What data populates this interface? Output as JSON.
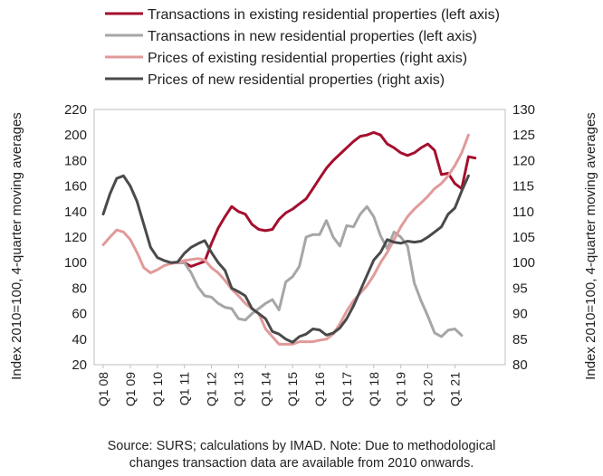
{
  "chart_data": {
    "type": "line",
    "ylabel_left": "Index 2010=100, 4-quarter moving averages",
    "ylabel_right": "Index 2010=100, 4-quarter moving averages",
    "ylim_left": [
      20,
      220
    ],
    "yticks_left": [
      20,
      40,
      60,
      80,
      100,
      120,
      140,
      160,
      180,
      200,
      220
    ],
    "ylim_right": [
      80,
      130
    ],
    "yticks_right": [
      80,
      85,
      90,
      95,
      100,
      105,
      110,
      115,
      120,
      125,
      130
    ],
    "xlim": [
      "Q1 08",
      "Q1 22"
    ],
    "x_tick_labels": [
      "Q1 08",
      "Q1 09",
      "Q1 10",
      "Q1 11",
      "Q1 12",
      "Q1 13",
      "Q1 14",
      "Q1 15",
      "Q1 16",
      "Q1 17",
      "Q1 18",
      "Q1 19",
      "Q1 20",
      "Q1 21"
    ],
    "grid": false,
    "legend_position": "top",
    "series": [
      {
        "name": "Transactions in existing residential properties (left axis)",
        "axis": "left",
        "color": "#a50f2d",
        "start": "Q4 10",
        "values": [
          100,
          100,
          97,
          99,
          101,
          115,
          127,
          136,
          144,
          140,
          138,
          130,
          126,
          125,
          126,
          134,
          139,
          142,
          146,
          150,
          158,
          166,
          174,
          180,
          185,
          190,
          195,
          199,
          200,
          202,
          200,
          193,
          190,
          186,
          184,
          186,
          190,
          193,
          188,
          169,
          170,
          162,
          158,
          183,
          182
        ]
      },
      {
        "name": "Transactions in new residential properties (left axis)",
        "axis": "left",
        "color": "#a6a6a6",
        "start": "Q4 10",
        "values": [
          100,
          100,
          92,
          81,
          74,
          73,
          68,
          65,
          64,
          56,
          55,
          60,
          64,
          68,
          71,
          63,
          85,
          89,
          97,
          120,
          122,
          122,
          133,
          120,
          113,
          129,
          128,
          138,
          144,
          136,
          121,
          111,
          124,
          120,
          113,
          84,
          70,
          58,
          45,
          42,
          47,
          48,
          43
        ]
      },
      {
        "name": "Prices of existing residential properties (right axis)",
        "axis": "right",
        "color": "#e19a9a",
        "start": "Q1 08",
        "values": [
          103.5,
          105,
          106.4,
          106,
          104.5,
          102,
          99,
          98,
          98.6,
          99.4,
          99.8,
          100,
          100.4,
          100.6,
          100.8,
          100.5,
          99,
          98,
          96.5,
          94.8,
          93.5,
          92,
          91,
          90,
          87,
          85.5,
          84,
          84,
          84,
          84.5,
          84.5,
          84.5,
          84.8,
          85,
          86,
          88,
          90.5,
          92.5,
          94,
          95.5,
          97.5,
          100,
          102,
          104.5,
          107,
          109,
          110.5,
          111.7,
          113,
          114.5,
          115.5,
          117,
          119,
          121.5,
          125
        ]
      },
      {
        "name": "Prices of new residential properties (right axis)",
        "axis": "right",
        "color": "#4a4a4a",
        "start": "Q1 08",
        "values": [
          109.5,
          113.5,
          116.5,
          117,
          115,
          112,
          107.5,
          103,
          101,
          100.4,
          100,
          100.1,
          101.8,
          103,
          103.7,
          104.3,
          102,
          100,
          98.5,
          95,
          94.3,
          93.5,
          91,
          90,
          89,
          86.5,
          86,
          85,
          84.4,
          85.5,
          86,
          87,
          86.8,
          85.8,
          86.2,
          87.2,
          89,
          91.5,
          94.5,
          97.5,
          100.5,
          102,
          104.5,
          104,
          103.8,
          104.2,
          104,
          104.2,
          105,
          106,
          107,
          109.5,
          110.7,
          114,
          117
        ]
      }
    ]
  },
  "source": {
    "line1": "Source: SURS; calculations by IMAD. Note: Due to methodological",
    "line2": "changes transaction data are available from 2010 onwards."
  }
}
